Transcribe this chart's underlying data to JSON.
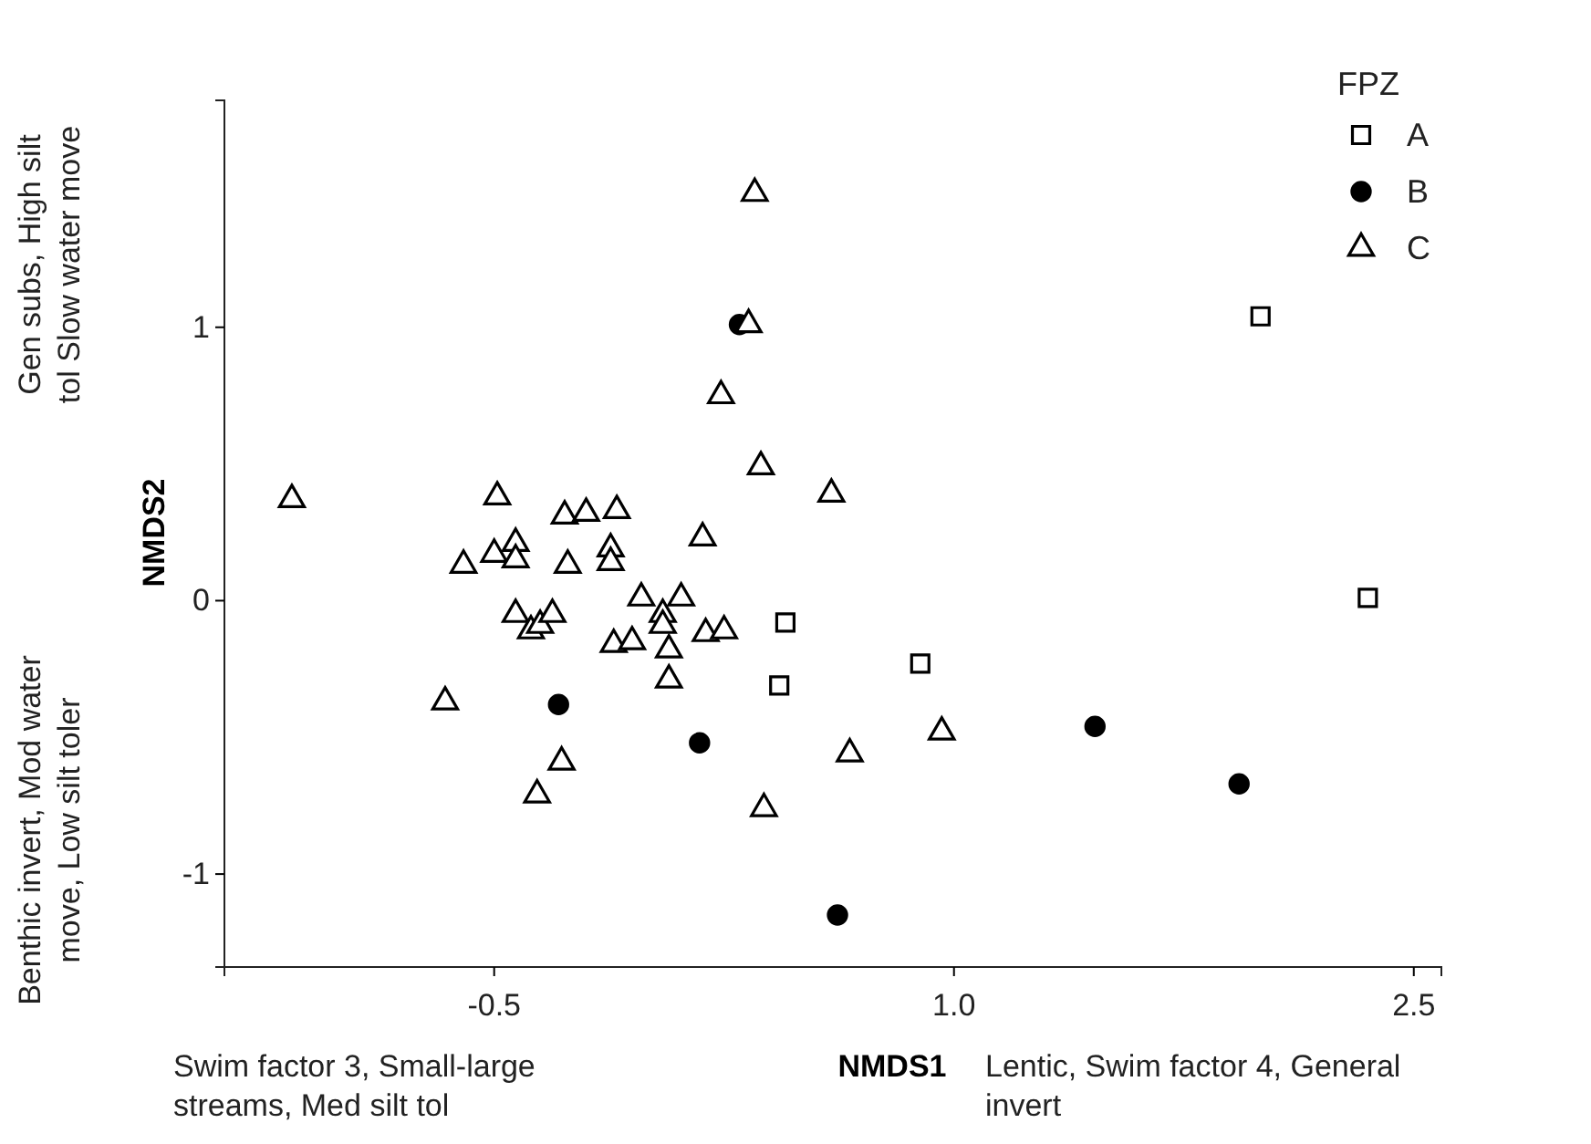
{
  "chart_data": {
    "type": "scatter",
    "xlabel": "NMDS1",
    "ylabel": "NMDS2",
    "legend_title": "FPZ",
    "legend": "top right",
    "xlim": [
      -1.38,
      2.59
    ],
    "ylim": [
      -1.34,
      1.83
    ],
    "xticks": [
      -0.5,
      {
        "value": 1,
        "label": "1.0"
      },
      2.5
    ],
    "yticks": [
      -1,
      0,
      1
    ],
    "annotations": [
      "Gen subs, High silt tol Slow water move",
      "Benthic invert, Mod water move, Low silt toler",
      "Swim factor 3, Small-large streams, Med silt tol",
      "Lentic, Swim factor 4, General invert"
    ],
    "series": [
      {
        "name": "A",
        "color": "#000000",
        "marker": "square",
        "x": [
          2.0,
          2.35,
          0.89,
          0.45,
          0.43
        ],
        "values": [
          1.04,
          0.01,
          -0.23,
          -0.08,
          -0.31
        ]
      },
      {
        "name": "B",
        "color": "#000000",
        "marker": "circle",
        "x": [
          0.3,
          -0.29,
          0.17,
          1.46,
          1.93,
          0.62
        ],
        "values": [
          1.01,
          -0.38,
          -0.52,
          -0.46,
          -0.67,
          -1.15
        ]
      },
      {
        "name": "C",
        "color": "#000000",
        "marker": "triangle",
        "x": [
          -1.16,
          -0.49,
          -0.27,
          -0.2,
          -0.1,
          0.37,
          -0.6,
          -0.5,
          -0.43,
          -0.43,
          -0.26,
          -0.12,
          -0.12,
          0.18,
          -0.43,
          -0.38,
          -0.35,
          -0.31,
          -0.02,
          0.11,
          0.05,
          0.05,
          -0.11,
          -0.05,
          0.07,
          0.19,
          0.25,
          0.07,
          -0.66,
          -0.28,
          -0.36,
          0.38,
          0.96,
          0.66,
          0.35,
          0.33,
          0.24,
          0.6
        ],
        "values": [
          0.37,
          0.38,
          0.31,
          0.32,
          0.33,
          0.49,
          0.13,
          0.17,
          0.21,
          0.15,
          0.13,
          0.19,
          0.14,
          0.23,
          -0.05,
          -0.11,
          -0.09,
          -0.05,
          0.01,
          0.01,
          -0.05,
          -0.09,
          -0.16,
          -0.15,
          -0.18,
          -0.12,
          -0.11,
          -0.29,
          -0.37,
          -0.59,
          -0.71,
          -0.76,
          -0.48,
          -0.56,
          1.49,
          1.01,
          0.75,
          0.39
        ]
      }
    ]
  }
}
